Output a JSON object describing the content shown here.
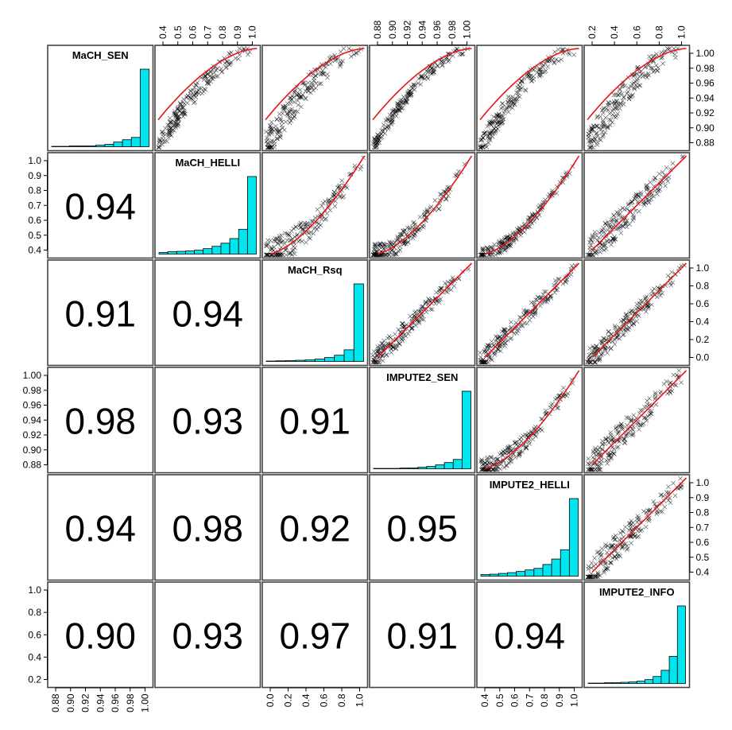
{
  "chart_data": {
    "type": "scatter",
    "subtype": "pairs-matrix",
    "title": "",
    "variables": [
      "MaCH_SEN",
      "MaCH_HELLI",
      "MaCH_Rsq",
      "IMPUTE2_SEN",
      "IMPUTE2_HELLI",
      "IMPUTE2_INFO"
    ],
    "correlations": [
      {
        "row": 1,
        "col": 0,
        "value": "0.94"
      },
      {
        "row": 2,
        "col": 0,
        "value": "0.91"
      },
      {
        "row": 2,
        "col": 1,
        "value": "0.94"
      },
      {
        "row": 3,
        "col": 0,
        "value": "0.98"
      },
      {
        "row": 3,
        "col": 1,
        "value": "0.93"
      },
      {
        "row": 3,
        "col": 2,
        "value": "0.91"
      },
      {
        "row": 4,
        "col": 0,
        "value": "0.94"
      },
      {
        "row": 4,
        "col": 1,
        "value": "0.98"
      },
      {
        "row": 4,
        "col": 2,
        "value": "0.92"
      },
      {
        "row": 4,
        "col": 3,
        "value": "0.95"
      },
      {
        "row": 5,
        "col": 0,
        "value": "0.90"
      },
      {
        "row": 5,
        "col": 1,
        "value": "0.93"
      },
      {
        "row": 5,
        "col": 2,
        "value": "0.97"
      },
      {
        "row": 5,
        "col": 3,
        "value": "0.91"
      },
      {
        "row": 5,
        "col": 4,
        "value": "0.94"
      }
    ],
    "histograms": [
      [
        0.005,
        0.005,
        0.01,
        0.01,
        0.01,
        0.02,
        0.03,
        0.06,
        0.09,
        0.12,
        1.0
      ],
      [
        0.02,
        0.03,
        0.035,
        0.04,
        0.05,
        0.07,
        0.1,
        0.14,
        0.2,
        0.32,
        1.0
      ],
      [
        0.005,
        0.008,
        0.01,
        0.015,
        0.02,
        0.03,
        0.05,
        0.08,
        0.15,
        1.0
      ],
      [
        0.005,
        0.005,
        0.005,
        0.01,
        0.01,
        0.02,
        0.03,
        0.05,
        0.08,
        0.12,
        1.0
      ],
      [
        0.02,
        0.025,
        0.035,
        0.045,
        0.06,
        0.08,
        0.1,
        0.15,
        0.22,
        0.34,
        1.0
      ],
      [
        0.005,
        0.005,
        0.01,
        0.01,
        0.015,
        0.02,
        0.03,
        0.05,
        0.09,
        0.17,
        0.35,
        1.0
      ]
    ],
    "axes": {
      "top": [
        {
          "col": 1,
          "ticks": [
            "0.4",
            "0.5",
            "0.6",
            "0.7",
            "0.8",
            "0.9",
            "1.0"
          ]
        },
        {
          "col": 3,
          "ticks": [
            "0.88",
            "0.90",
            "0.92",
            "0.94",
            "0.96",
            "0.98",
            "1.00"
          ]
        },
        {
          "col": 5,
          "ticks": [
            "0.2",
            "0.4",
            "0.6",
            "0.8",
            "1.0"
          ]
        }
      ],
      "bottom": [
        {
          "col": 0,
          "ticks": [
            "0.88",
            "0.90",
            "0.92",
            "0.94",
            "0.96",
            "0.98",
            "1.00"
          ]
        },
        {
          "col": 2,
          "ticks": [
            "0.0",
            "0.2",
            "0.4",
            "0.6",
            "0.8",
            "1.0"
          ]
        },
        {
          "col": 4,
          "ticks": [
            "0.4",
            "0.5",
            "0.6",
            "0.7",
            "0.8",
            "0.9",
            "1.0"
          ]
        }
      ],
      "left": [
        {
          "row": 1,
          "ticks": [
            "0.4",
            "0.5",
            "0.6",
            "0.7",
            "0.8",
            "0.9",
            "1.0"
          ]
        },
        {
          "row": 3,
          "ticks": [
            "0.88",
            "0.90",
            "0.92",
            "0.94",
            "0.96",
            "0.98",
            "1.00"
          ]
        },
        {
          "row": 5,
          "ticks": [
            "0.2",
            "0.4",
            "0.6",
            "0.8",
            "1.0"
          ]
        }
      ],
      "right": [
        {
          "row": 0,
          "ticks": [
            "0.88",
            "0.90",
            "0.92",
            "0.94",
            "0.96",
            "0.98",
            "1.00"
          ]
        },
        {
          "row": 2,
          "ticks": [
            "0.0",
            "0.2",
            "0.4",
            "0.6",
            "0.8",
            "1.0"
          ]
        },
        {
          "row": 4,
          "ticks": [
            "0.4",
            "0.5",
            "0.6",
            "0.7",
            "0.8",
            "0.9",
            "1.0"
          ]
        }
      ]
    },
    "colors": {
      "histogram_fill": "#00e5ee",
      "fit_line": "#e8141e",
      "points": "#000000"
    },
    "point_marker": "x",
    "smoother": "loess",
    "grid": false,
    "legend": "none"
  }
}
